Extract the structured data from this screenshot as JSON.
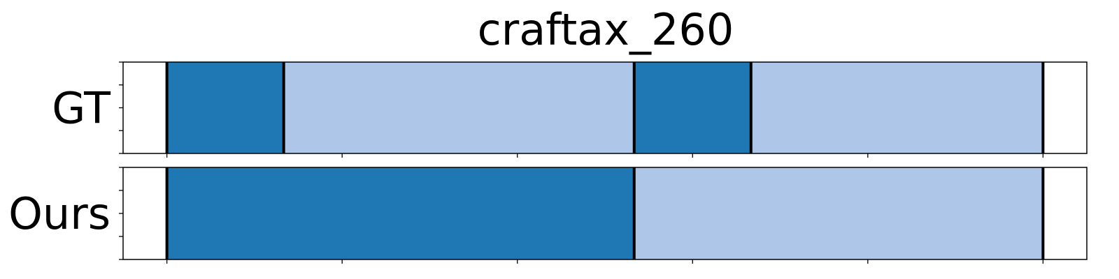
{
  "chart_data": {
    "type": "bar",
    "title": "craftax_260",
    "rows": [
      {
        "label": "GT",
        "segments": [
          {
            "start": 0,
            "end": 2,
            "color": "#1f77b4"
          },
          {
            "start": 2,
            "end": 8,
            "color": "#aec7e8"
          },
          {
            "start": 8,
            "end": 10,
            "color": "#1f77b4"
          },
          {
            "start": 10,
            "end": 15,
            "color": "#aec7e8"
          }
        ],
        "boundaries": [
          0,
          2,
          8,
          10,
          15
        ]
      },
      {
        "label": "Ours",
        "segments": [
          {
            "start": 0,
            "end": 8,
            "color": "#1f77b4"
          },
          {
            "start": 8,
            "end": 15,
            "color": "#aec7e8"
          }
        ],
        "boundaries": [
          0,
          8,
          15
        ]
      }
    ],
    "xlim": [
      -0.75,
      15.75
    ],
    "xticks": [
      0,
      3,
      6,
      9,
      12,
      15
    ],
    "yticks_per_row": 5,
    "grid": false,
    "legend": "none"
  }
}
